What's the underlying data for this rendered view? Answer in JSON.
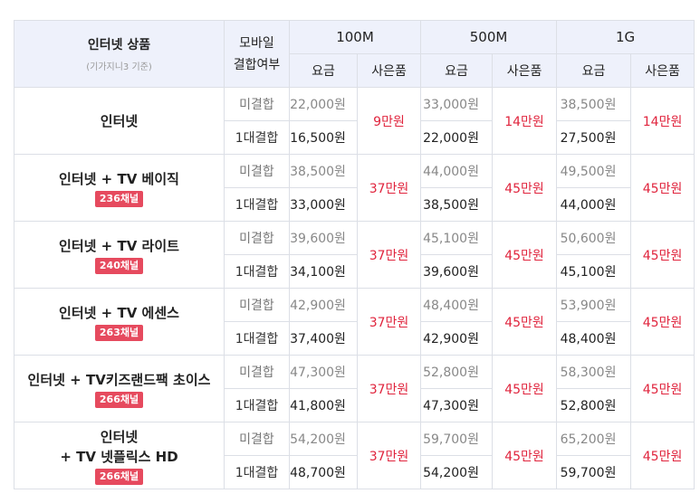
{
  "header": {
    "product_title": "인터넷 상품",
    "product_sub": "(기가지니3 기준)",
    "mobile_line1": "모바일",
    "mobile_line2": "결합여부",
    "speeds": [
      "100M",
      "500M",
      "1G"
    ],
    "fee_label": "요금",
    "gift_label": "사은품"
  },
  "rows": [
    {
      "name_lines": [
        "인터넷"
      ],
      "badge": "",
      "combos": [
        "미결합",
        "1대결합"
      ],
      "plans": [
        {
          "fees": [
            "22,000원",
            "16,500원"
          ],
          "gift": "9만원"
        },
        {
          "fees": [
            "33,000원",
            "22,000원"
          ],
          "gift": "14만원"
        },
        {
          "fees": [
            "38,500원",
            "27,500원"
          ],
          "gift": "14만원"
        }
      ]
    },
    {
      "name_lines": [
        "인터넷 + TV 베이직"
      ],
      "badge": "236채널",
      "combos": [
        "미결합",
        "1대결합"
      ],
      "plans": [
        {
          "fees": [
            "38,500원",
            "33,000원"
          ],
          "gift": "37만원"
        },
        {
          "fees": [
            "44,000원",
            "38,500원"
          ],
          "gift": "45만원"
        },
        {
          "fees": [
            "49,500원",
            "44,000원"
          ],
          "gift": "45만원"
        }
      ]
    },
    {
      "name_lines": [
        "인터넷 + TV 라이트"
      ],
      "badge": "240채널",
      "combos": [
        "미결합",
        "1대결합"
      ],
      "plans": [
        {
          "fees": [
            "39,600원",
            "34,100원"
          ],
          "gift": "37만원"
        },
        {
          "fees": [
            "45,100원",
            "39,600원"
          ],
          "gift": "45만원"
        },
        {
          "fees": [
            "50,600원",
            "45,100원"
          ],
          "gift": "45만원"
        }
      ]
    },
    {
      "name_lines": [
        "인터넷 + TV 에센스"
      ],
      "badge": "263채널",
      "combos": [
        "미결합",
        "1대결합"
      ],
      "plans": [
        {
          "fees": [
            "42,900원",
            "37,400원"
          ],
          "gift": "37만원"
        },
        {
          "fees": [
            "48,400원",
            "42,900원"
          ],
          "gift": "45만원"
        },
        {
          "fees": [
            "53,900원",
            "48,400원"
          ],
          "gift": "45만원"
        }
      ]
    },
    {
      "name_lines": [
        "인터넷 + TV키즈랜드팩 초이스"
      ],
      "badge": "266채널",
      "combos": [
        "미결합",
        "1대결합"
      ],
      "plans": [
        {
          "fees": [
            "47,300원",
            "41,800원"
          ],
          "gift": "37만원"
        },
        {
          "fees": [
            "52,800원",
            "47,300원"
          ],
          "gift": "45만원"
        },
        {
          "fees": [
            "58,300원",
            "52,800원"
          ],
          "gift": "45만원"
        }
      ]
    },
    {
      "name_lines": [
        "인터넷",
        "+ TV 넷플릭스 HD"
      ],
      "badge": "266채널",
      "combos": [
        "미결합",
        "1대결합"
      ],
      "plans": [
        {
          "fees": [
            "54,200원",
            "48,700원"
          ],
          "gift": "37만원"
        },
        {
          "fees": [
            "59,700원",
            "54,200원"
          ],
          "gift": "45만원"
        },
        {
          "fees": [
            "65,200원",
            "59,700원"
          ],
          "gift": "45만원"
        }
      ]
    }
  ]
}
